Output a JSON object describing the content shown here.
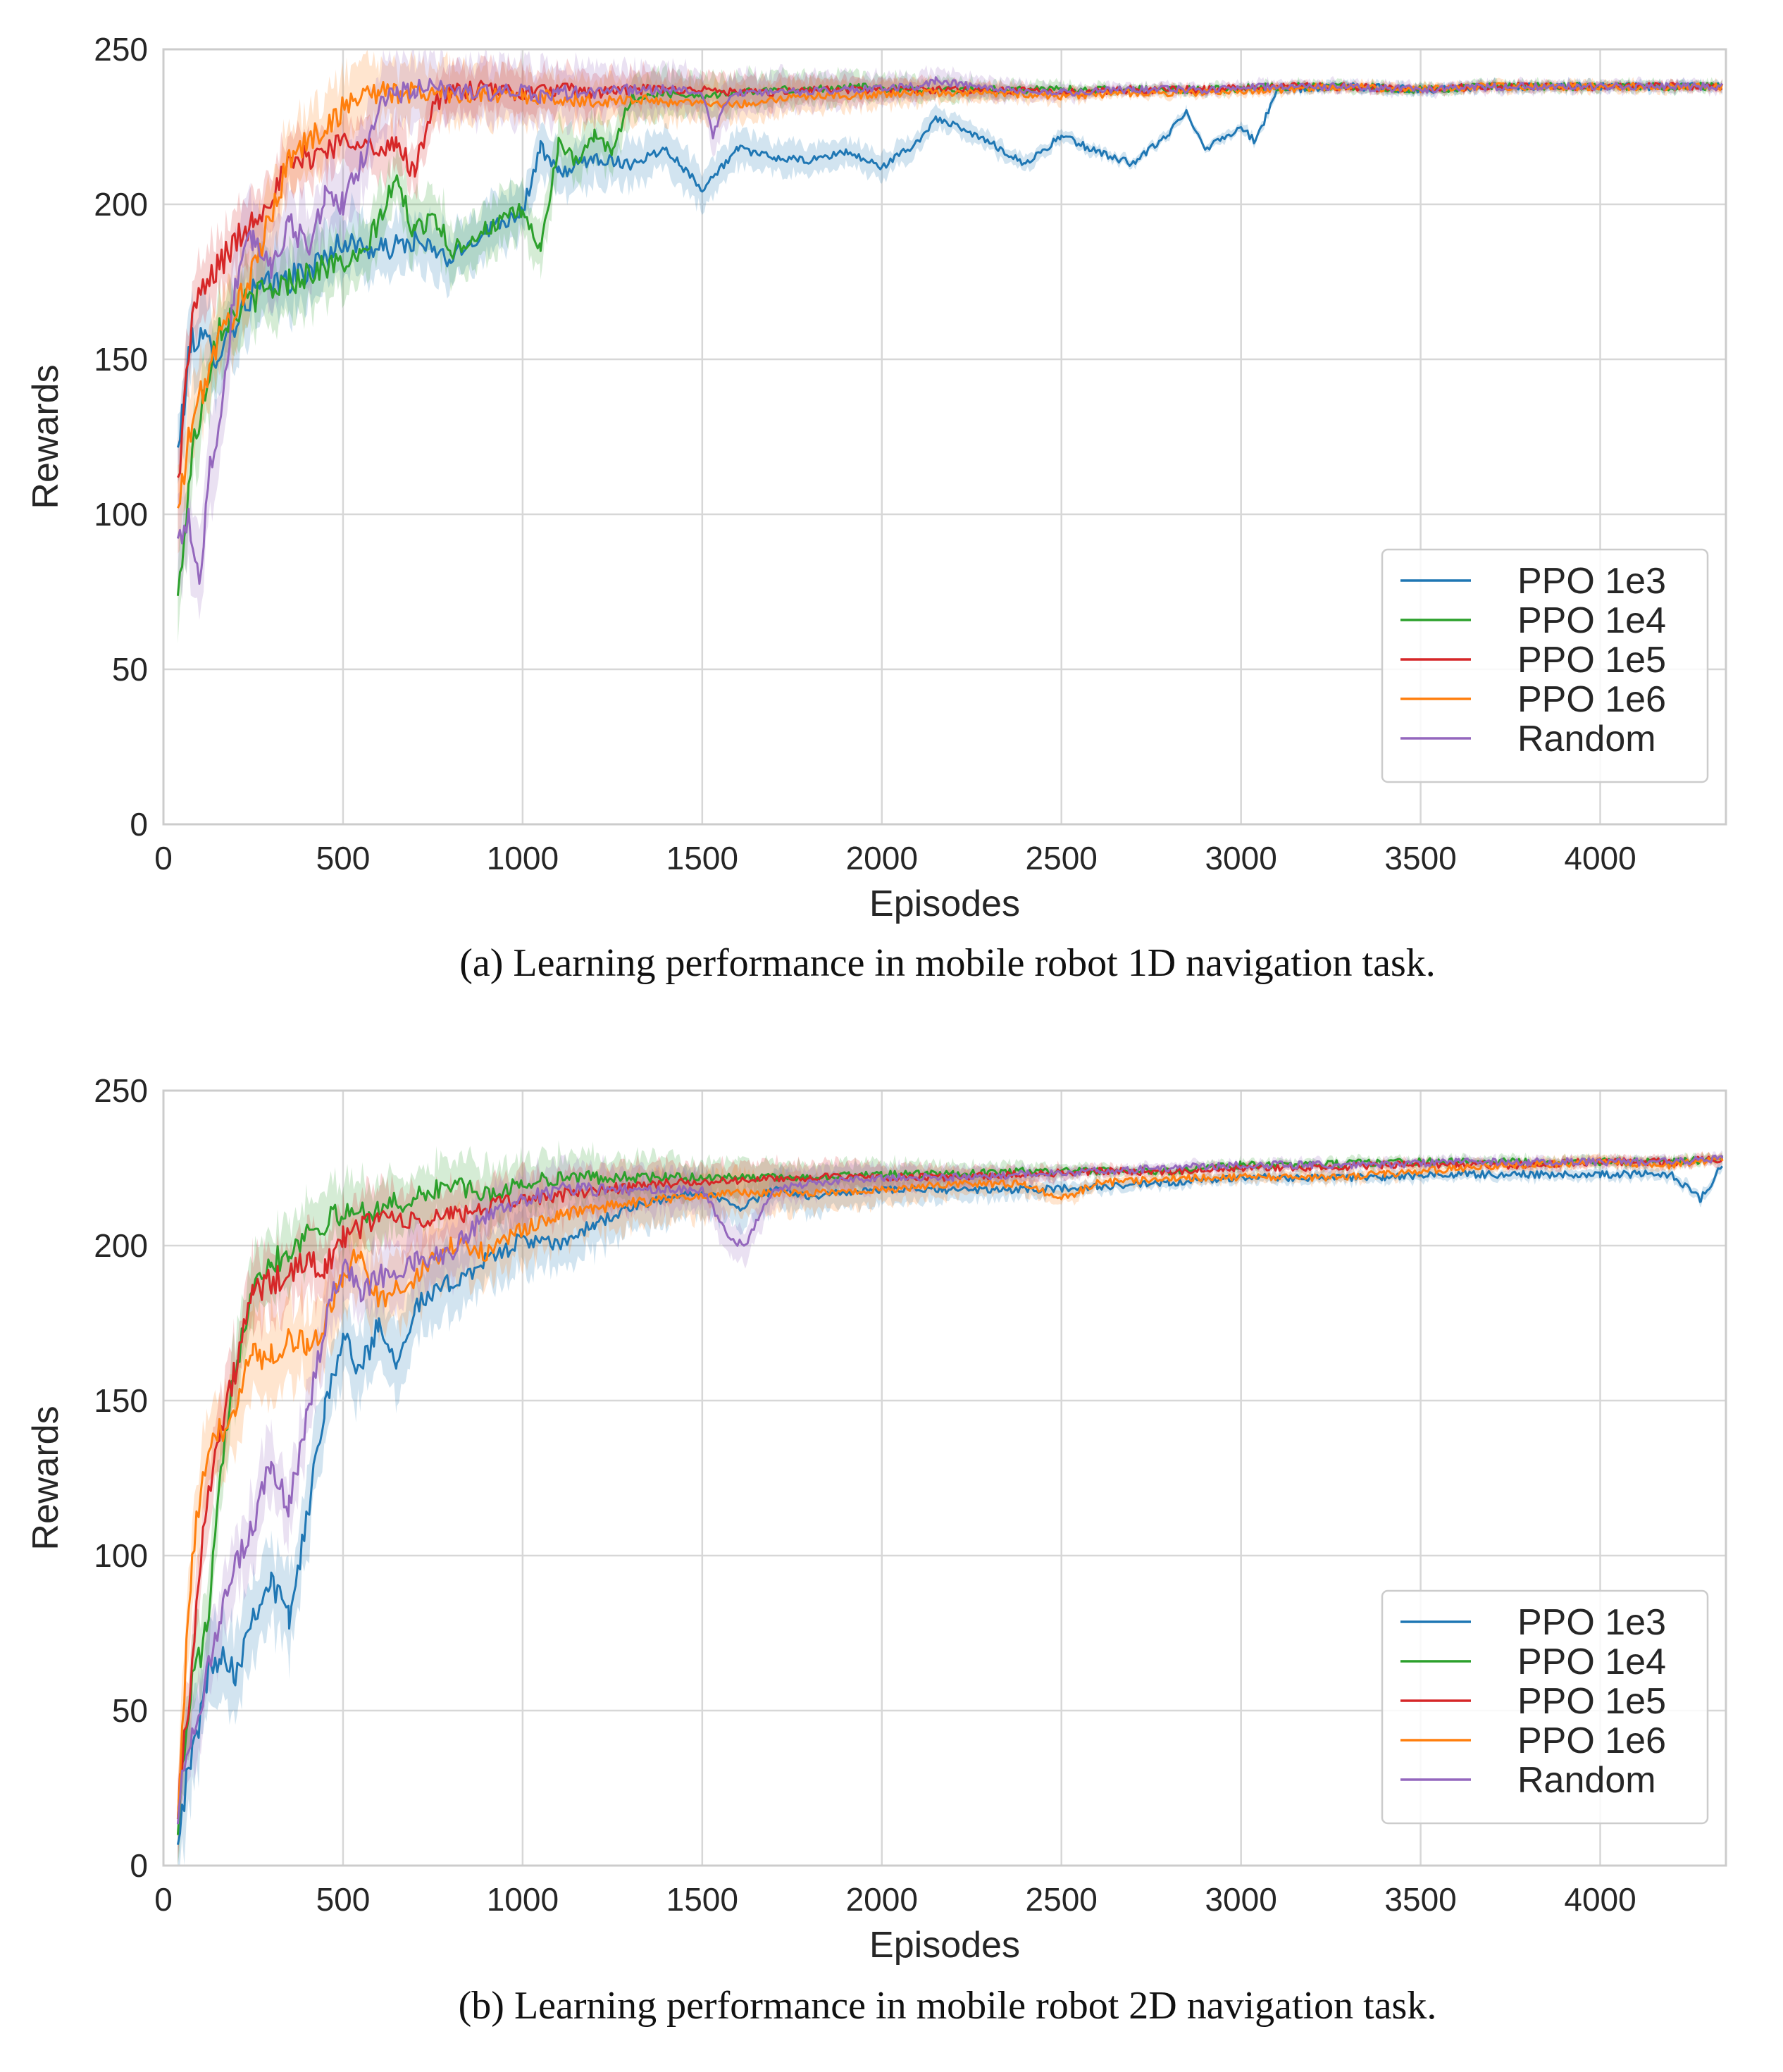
{
  "chart_data": [
    {
      "type": "line",
      "panel": "a",
      "caption": "(a) Learning performance in mobile robot 1D navigation task.",
      "xlabel": "Episodes",
      "ylabel": "Rewards",
      "xlim": [
        0,
        4350
      ],
      "ylim": [
        0,
        250
      ],
      "xticks": [
        0,
        500,
        1000,
        1500,
        2000,
        2500,
        3000,
        3500,
        4000
      ],
      "yticks": [
        0,
        50,
        100,
        150,
        200,
        250
      ],
      "grid": true,
      "legend_position": "bottom-right",
      "series": [
        {
          "name": "PPO 1e3",
          "color": "#1f77b4",
          "band": 12,
          "x": [
            40,
            80,
            150,
            250,
            400,
            500,
            600,
            700,
            800,
            900,
            1000,
            1050,
            1100,
            1200,
            1300,
            1400,
            1500,
            1600,
            1700,
            1800,
            1900,
            2000,
            2100,
            2150,
            2300,
            2400,
            2500,
            2600,
            2700,
            2800,
            2850,
            2900,
            3000,
            3040,
            3100,
            3300,
            3500,
            3700,
            3900,
            4100,
            4340
          ],
          "y": [
            120,
            158,
            152,
            172,
            178,
            188,
            185,
            188,
            182,
            192,
            198,
            218,
            210,
            215,
            213,
            218,
            205,
            218,
            215,
            214,
            217,
            212,
            220,
            228,
            220,
            213,
            222,
            217,
            213,
            223,
            230,
            218,
            225,
            220,
            237,
            238,
            237,
            238,
            238,
            238,
            238
          ]
        },
        {
          "name": "PPO 1e4",
          "color": "#2ca02c",
          "band": 12,
          "x": [
            40,
            80,
            150,
            250,
            350,
            450,
            550,
            650,
            700,
            750,
            800,
            900,
            1000,
            1050,
            1100,
            1150,
            1200,
            1250,
            1300,
            1400,
            1500,
            1600,
            1700,
            1800,
            1900,
            2100,
            2300,
            2500,
            2700,
            2900,
            3100,
            3300,
            3500,
            3700,
            3900,
            4100,
            4340
          ],
          "y": [
            72,
            120,
            160,
            170,
            175,
            180,
            182,
            208,
            190,
            198,
            185,
            192,
            198,
            185,
            220,
            213,
            222,
            217,
            234,
            236,
            235,
            236,
            237,
            237,
            238,
            237,
            237,
            237,
            237,
            237,
            238,
            238,
            237,
            238,
            238,
            238,
            238
          ]
        },
        {
          "name": "PPO 1e5",
          "color": "#d62728",
          "band": 10,
          "x": [
            40,
            80,
            150,
            250,
            350,
            450,
            550,
            600,
            650,
            700,
            750,
            800,
            900,
            1000,
            1100,
            1200,
            1300,
            1400,
            1500,
            1600,
            1700,
            1800,
            1900,
            2100,
            2300,
            2500,
            2700,
            2900,
            3100,
            3300,
            3500,
            3700,
            3900,
            4100,
            4340
          ],
          "y": [
            110,
            165,
            180,
            195,
            212,
            218,
            222,
            215,
            220,
            210,
            233,
            236,
            237,
            236,
            237,
            236,
            237,
            237,
            237,
            236,
            236,
            237,
            237,
            237,
            237,
            236,
            237,
            237,
            238,
            238,
            237,
            238,
            238,
            238,
            238
          ]
        },
        {
          "name": "PPO 1e6",
          "color": "#ff7f0e",
          "band": 12,
          "x": [
            40,
            80,
            150,
            250,
            350,
            450,
            550,
            600,
            700,
            800,
            900,
            1000,
            1100,
            1200,
            1300,
            1400,
            1500,
            1600,
            1700,
            1800,
            1900,
            2100,
            2300,
            2500,
            2700,
            2900,
            3100,
            3300,
            3500,
            3700,
            3900,
            4100,
            4340
          ],
          "y": [
            100,
            130,
            155,
            178,
            215,
            225,
            236,
            236,
            236,
            236,
            235,
            235,
            234,
            233,
            234,
            233,
            233,
            232,
            234,
            235,
            235,
            236,
            236,
            235,
            236,
            236,
            237,
            238,
            237,
            238,
            238,
            238,
            238
          ]
        },
        {
          "name": "Random",
          "color": "#9467bd",
          "band": 14,
          "x": [
            40,
            70,
            100,
            130,
            160,
            200,
            250,
            300,
            350,
            400,
            450,
            500,
            550,
            600,
            650,
            700,
            800,
            900,
            1000,
            1050,
            1100,
            1200,
            1300,
            1400,
            1500,
            1530,
            1560,
            1600,
            1700,
            1900,
            2100,
            2150,
            2300,
            2500,
            2700,
            2900,
            3100,
            3300,
            3500,
            3700,
            3900,
            4100,
            4340
          ],
          "y": [
            90,
            100,
            78,
            115,
            132,
            175,
            190,
            180,
            195,
            185,
            203,
            200,
            213,
            232,
            236,
            237,
            237,
            236,
            236,
            235,
            236,
            236,
            237,
            237,
            236,
            222,
            232,
            236,
            236,
            237,
            238,
            240,
            237,
            236,
            237,
            237,
            238,
            238,
            237,
            238,
            238,
            238,
            238
          ]
        }
      ]
    },
    {
      "type": "line",
      "panel": "b",
      "caption": "(b) Learning performance in mobile robot 2D navigation task.",
      "xlabel": "Episodes",
      "ylabel": "Rewards",
      "xlim": [
        0,
        4350
      ],
      "ylim": [
        0,
        250
      ],
      "xticks": [
        0,
        500,
        1000,
        1500,
        2000,
        2500,
        3000,
        3500,
        4000
      ],
      "yticks": [
        0,
        50,
        100,
        150,
        200,
        250
      ],
      "grid": true,
      "legend_position": "bottom-right",
      "series": [
        {
          "name": "PPO 1e3",
          "color": "#1f77b4",
          "band": 14,
          "x": [
            40,
            80,
            120,
            160,
            200,
            250,
            300,
            350,
            400,
            450,
            500,
            550,
            600,
            650,
            700,
            800,
            900,
            1000,
            1100,
            1200,
            1300,
            1400,
            1500,
            1600,
            1700,
            1800,
            2000,
            2200,
            2400,
            2600,
            2800,
            3000,
            3200,
            3400,
            3600,
            3800,
            4000,
            4200,
            4280,
            4340
          ],
          "y": [
            12,
            35,
            60,
            70,
            62,
            82,
            92,
            80,
            112,
            150,
            170,
            160,
            175,
            163,
            180,
            188,
            195,
            202,
            200,
            207,
            212,
            215,
            218,
            212,
            218,
            216,
            218,
            218,
            218,
            219,
            220,
            222,
            222,
            222,
            223,
            223,
            223,
            223,
            215,
            226
          ]
        },
        {
          "name": "PPO 1e4",
          "color": "#2ca02c",
          "band": 12,
          "x": [
            40,
            80,
            120,
            160,
            200,
            250,
            300,
            350,
            400,
            500,
            600,
            700,
            800,
            900,
            1000,
            1100,
            1200,
            1400,
            1600,
            1800,
            2000,
            2200,
            2400,
            2600,
            2800,
            3000,
            3200,
            3400,
            3600,
            3800,
            4000,
            4200,
            4340
          ],
          "y": [
            15,
            60,
            75,
            125,
            160,
            190,
            195,
            198,
            205,
            210,
            212,
            215,
            220,
            216,
            220,
            222,
            222,
            222,
            222,
            222,
            223,
            223,
            224,
            224,
            224,
            226,
            226,
            227,
            227,
            227,
            227,
            227,
            228
          ]
        },
        {
          "name": "PPO 1e5",
          "color": "#d62728",
          "band": 12,
          "x": [
            40,
            80,
            120,
            160,
            200,
            250,
            300,
            350,
            400,
            450,
            500,
            600,
            700,
            800,
            900,
            1000,
            1100,
            1200,
            1400,
            1600,
            1800,
            2000,
            2200,
            2400,
            2600,
            2800,
            3000,
            3200,
            3400,
            3600,
            3800,
            4000,
            4200,
            4340
          ],
          "y": [
            20,
            65,
            120,
            140,
            160,
            185,
            188,
            190,
            195,
            193,
            202,
            210,
            207,
            210,
            212,
            215,
            216,
            218,
            220,
            221,
            222,
            222,
            222,
            223,
            224,
            224,
            225,
            225,
            226,
            226,
            226,
            227,
            227,
            228
          ]
        },
        {
          "name": "PPO 1e6",
          "color": "#ff7f0e",
          "band": 14,
          "x": [
            40,
            80,
            120,
            160,
            200,
            250,
            300,
            350,
            400,
            450,
            500,
            550,
            600,
            700,
            800,
            900,
            1000,
            1100,
            1200,
            1400,
            1600,
            1800,
            2000,
            2200,
            2400,
            2500,
            2600,
            2800,
            3000,
            3200,
            3400,
            3600,
            3800,
            4000,
            4200,
            4340
          ],
          "y": [
            20,
            100,
            130,
            140,
            150,
            165,
            165,
            170,
            168,
            175,
            190,
            198,
            182,
            190,
            200,
            198,
            205,
            210,
            212,
            215,
            217,
            217,
            218,
            220,
            220,
            215,
            220,
            222,
            222,
            222,
            223,
            225,
            226,
            227,
            226,
            228
          ]
        },
        {
          "name": "Random",
          "color": "#9467bd",
          "band": 12,
          "x": [
            40,
            80,
            120,
            160,
            200,
            250,
            300,
            350,
            400,
            450,
            500,
            550,
            600,
            650,
            700,
            800,
            900,
            1000,
            1100,
            1200,
            1300,
            1400,
            1500,
            1580,
            1620,
            1660,
            1700,
            1800,
            2000,
            2200,
            2400,
            2600,
            2800,
            3000,
            3200,
            3400,
            3600,
            3800,
            4000,
            4200,
            4340
          ],
          "y": [
            18,
            45,
            60,
            80,
            95,
            110,
            130,
            115,
            145,
            175,
            195,
            185,
            190,
            192,
            195,
            198,
            210,
            215,
            218,
            218,
            218,
            218,
            218,
            202,
            200,
            210,
            218,
            220,
            222,
            222,
            223,
            224,
            225,
            226,
            226,
            226,
            227,
            227,
            227,
            227,
            228
          ]
        }
      ]
    }
  ]
}
